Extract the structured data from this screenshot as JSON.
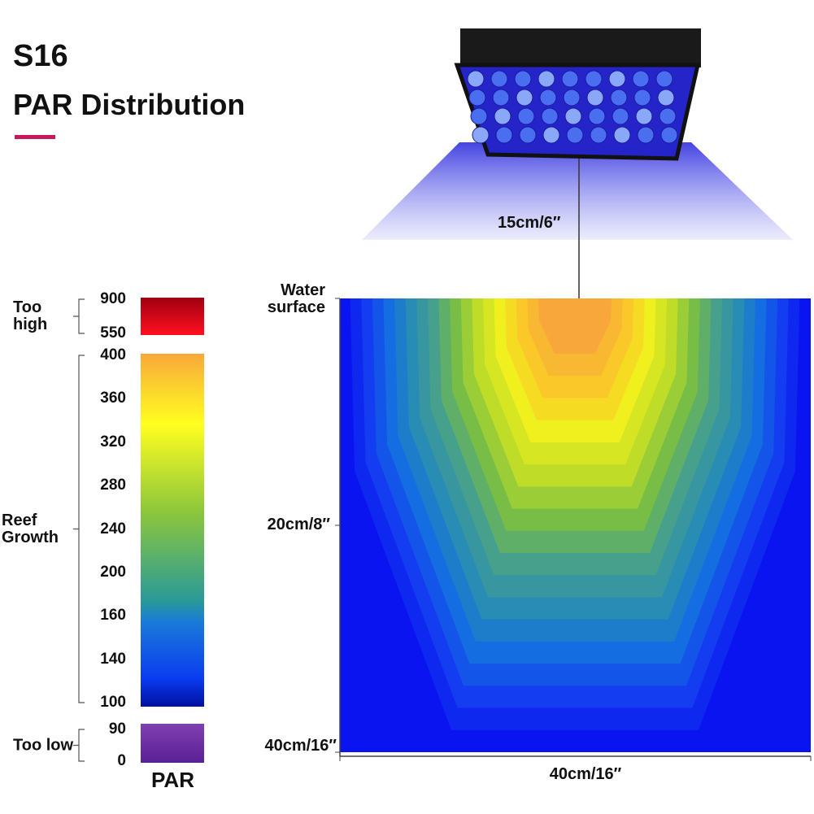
{
  "header": {
    "title": "S16",
    "subtitle": "PAR Distribution"
  },
  "scale": {
    "groups": [
      {
        "label": "Too high",
        "ticks": [
          900,
          550
        ]
      },
      {
        "label": "Reef Growth",
        "ticks": [
          400,
          360,
          320,
          280,
          240,
          200,
          160,
          140,
          100
        ]
      },
      {
        "label": "Too low",
        "ticks": [
          90,
          0
        ]
      }
    ],
    "unit": "PAR"
  },
  "diagram": {
    "light_height": "15cm/6″",
    "surface_label": "Water surface",
    "depth_mid": "20cm/8″",
    "depth_bottom": "40cm/16″",
    "width": "40cm/16″"
  }
}
